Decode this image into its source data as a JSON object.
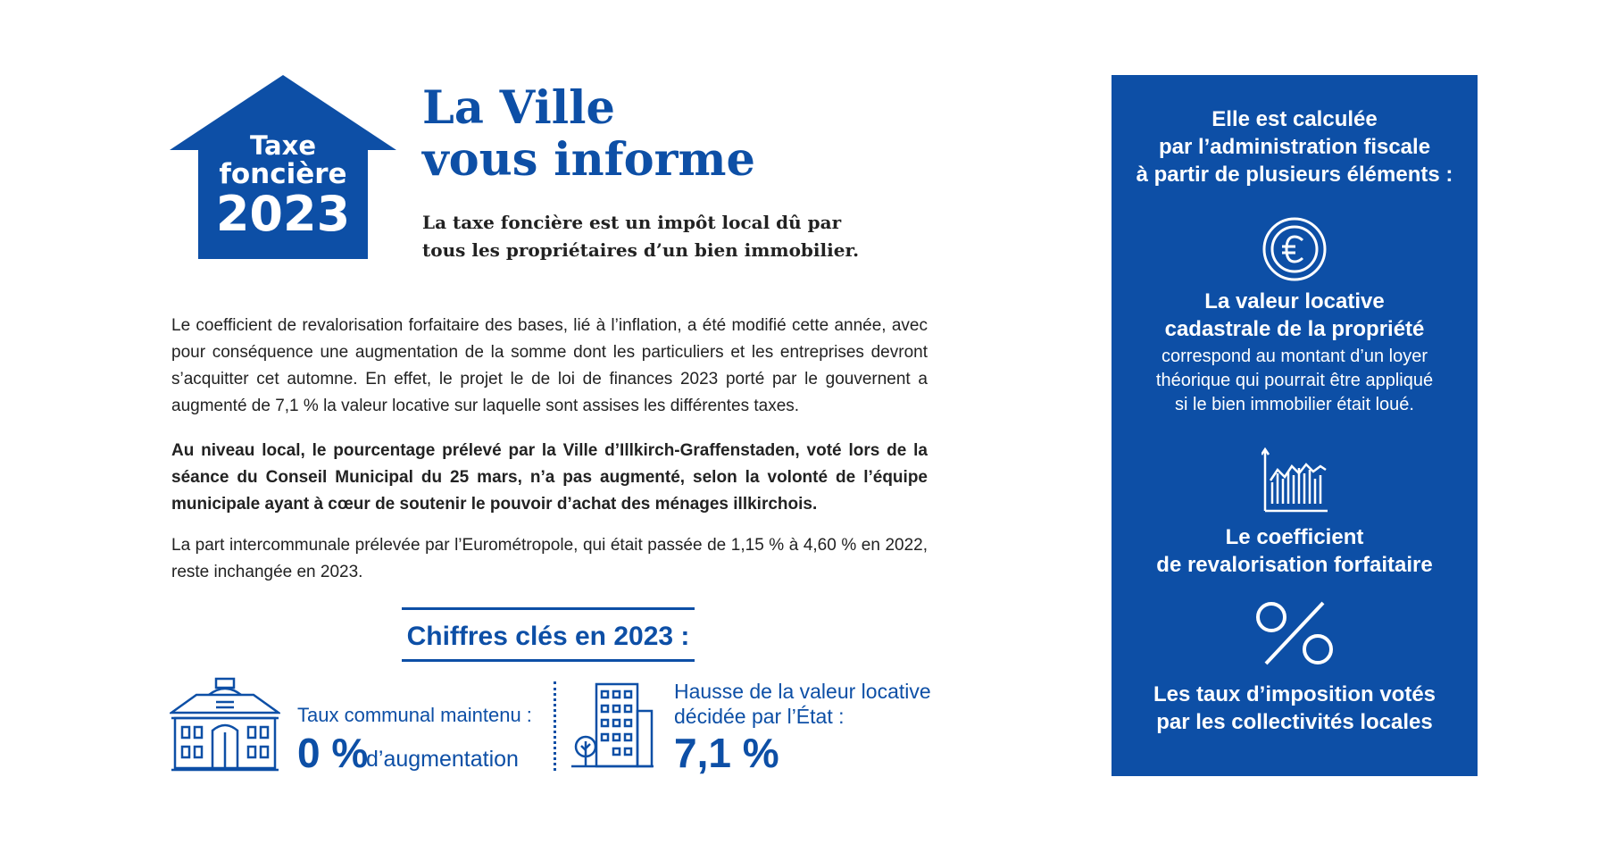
{
  "logo": {
    "line1": "Taxe",
    "line2": "foncière",
    "line3": "2023"
  },
  "title": {
    "line1": "La Ville",
    "line2": "vous informe"
  },
  "subtitle": {
    "line1": "La taxe foncière est un impôt local dû par",
    "line2": "tous les propriétaires d’un bien immobilier."
  },
  "paragraphs": {
    "p1": "Le coefficient de revalorisation forfaitaire des bases, lié à l’inflation, a été modifié cette année, avec pour conséquence une augmentation de la somme dont les particuliers et les entreprises devront s’acquitter cet automne. En effet, le projet le de loi de finances 2023 porté par le gouvernent a augmenté de 7,1 % la valeur locative sur laquelle sont assises les différentes taxes.",
    "p2": "Au niveau local, le pourcentage prélevé par la Ville d’Illkirch-Graffenstaden, voté lors de la séance du Conseil Municipal du 25 mars, n’a pas augmenté, selon la volonté de l’équipe municipale ayant à cœur de soutenir le pouvoir d’achat des ménages illkirchois.",
    "p3": "La part intercommunale prélevée par l’Eurométropole, qui était passée de 1,15 % à 4,60 % en 2022, reste inchangée en 2023."
  },
  "key_figures": {
    "heading": "Chiffres clés en 2023 :",
    "city": {
      "label": "Taux communal maintenu :",
      "value": "0 %",
      "suffix": "d’augmentation",
      "icon": "city-hall-icon"
    },
    "state": {
      "label_line1": "Hausse de la valeur locative",
      "label_line2": "décidée par l’État  :",
      "value": "7,1 %",
      "icon": "building-icon"
    }
  },
  "panel": {
    "intro": {
      "line1": "Elle est calculée",
      "line2": "par l’administration fiscale",
      "line3": "à partir de plusieurs éléments :"
    },
    "rental_value": {
      "icon": "euro-icon",
      "title_line1": "La valeur locative",
      "title_line2": "cadastrale de la propriété",
      "desc_line1": "correspond au montant d’un loyer",
      "desc_line2": "théorique qui pourrait être appliqué",
      "desc_line3": "si le bien immobilier était loué."
    },
    "coefficient": {
      "icon": "growth-chart-icon",
      "title_line1": "Le coefficient",
      "title_line2": "de revalorisation forfaitaire"
    },
    "tax_rates": {
      "icon": "percent-icon",
      "title_line1": "Les taux d’imposition votés",
      "title_line2": "par les collectivités locales"
    }
  },
  "colors": {
    "brand_blue": "#0d4fa6",
    "text": "#222222",
    "background": "#ffffff"
  }
}
